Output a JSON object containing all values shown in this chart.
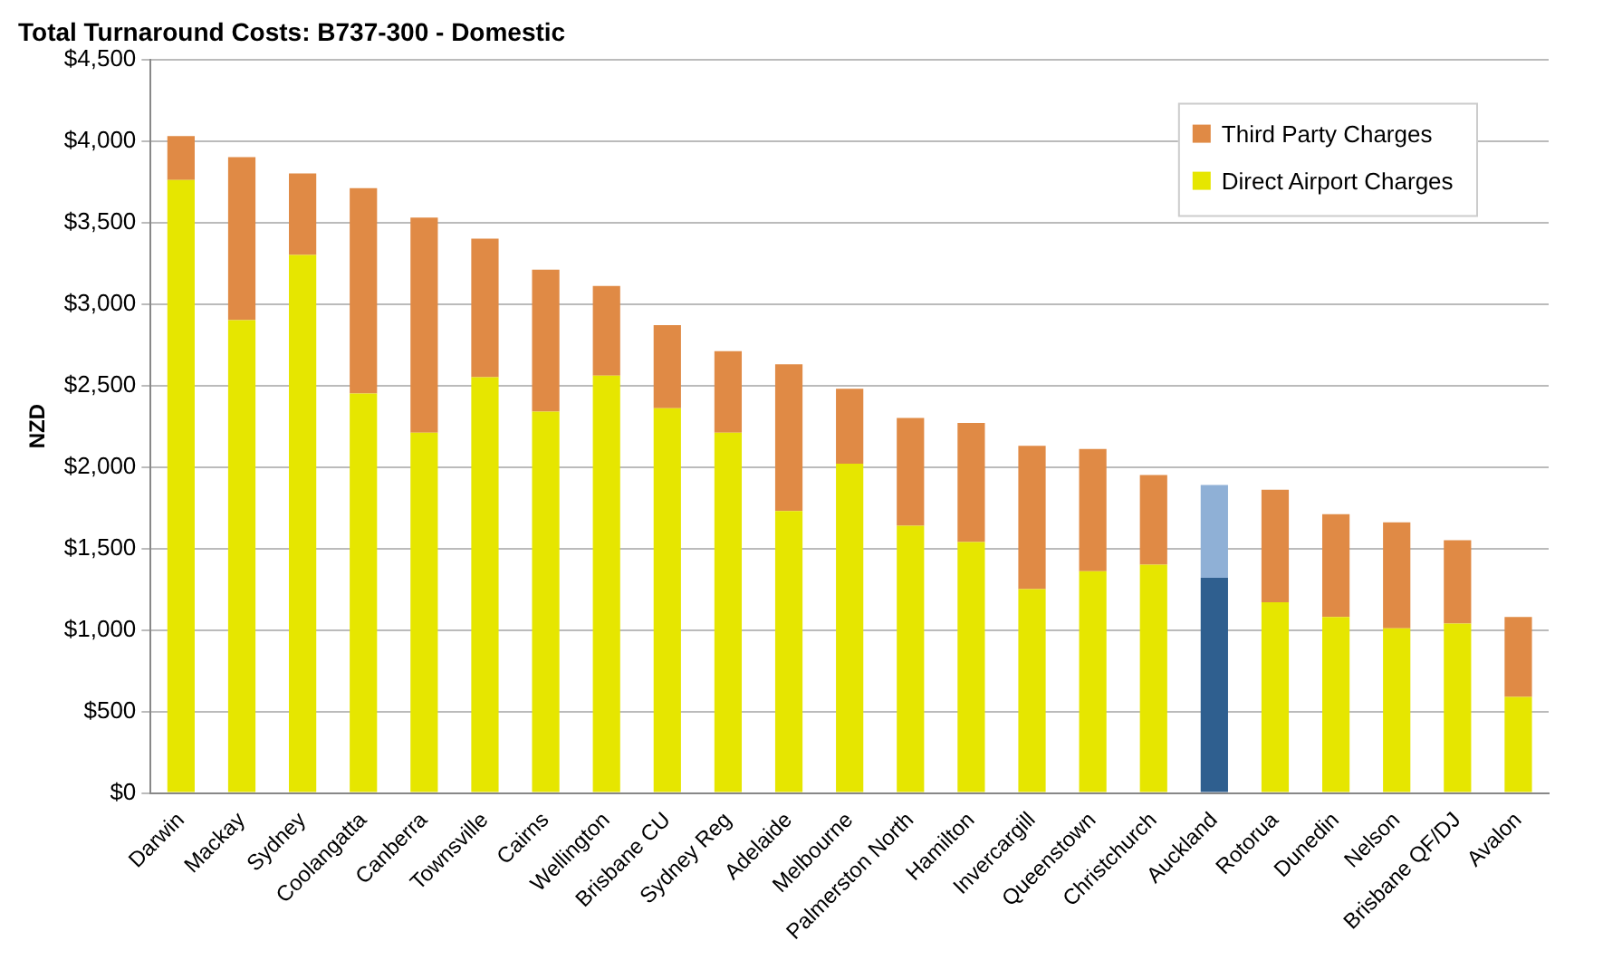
{
  "chart_data": {
    "type": "bar",
    "title": "Total Turnaround Costs: B737-300 - Domestic",
    "ylabel": "NZD",
    "stacked": true,
    "grid": "y",
    "legend": "top right",
    "categories": [
      "Darwin",
      "Mackay",
      "Sydney",
      "Coolangatta",
      "Canberra",
      "Townsville",
      "Cairns",
      "Wellington",
      "Brisbane CU",
      "Sydney Reg",
      "Adelaide",
      "Melbourne",
      "Palmerston North",
      "Hamilton",
      "Invercargill",
      "Queenstown",
      "Christchurch",
      "Auckland",
      "Rotorua",
      "Dunedin",
      "Nelson",
      "Brisbane QF/DJ",
      "Avalon"
    ],
    "series": [
      {
        "name": "Direct Airport Charges",
        "color": "#e6e600",
        "colors": [
          "#e6e600",
          "#e6e600",
          "#e6e600",
          "#e6e600",
          "#e6e600",
          "#e6e600",
          "#e6e600",
          "#e6e600",
          "#e6e600",
          "#e6e600",
          "#e6e600",
          "#e6e600",
          "#e6e600",
          "#e6e600",
          "#e6e600",
          "#e6e600",
          "#e6e600",
          "#2f5f8f",
          "#e6e600",
          "#e6e600",
          "#e6e600",
          "#e6e600",
          "#e6e600"
        ],
        "values": [
          3760,
          2900,
          3300,
          2450,
          2210,
          2550,
          2340,
          2560,
          2360,
          2210,
          1730,
          2020,
          1640,
          1540,
          1250,
          1360,
          1400,
          1320,
          1170,
          1080,
          1010,
          1040,
          590
        ]
      },
      {
        "name": "Third Party Charges",
        "color": "#e08a45",
        "colors": [
          "#e08a45",
          "#e08a45",
          "#e08a45",
          "#e08a45",
          "#e08a45",
          "#e08a45",
          "#e08a45",
          "#e08a45",
          "#e08a45",
          "#e08a45",
          "#e08a45",
          "#e08a45",
          "#e08a45",
          "#e08a45",
          "#e08a45",
          "#e08a45",
          "#e08a45",
          "#8fb0d6",
          "#e08a45",
          "#e08a45",
          "#e08a45",
          "#e08a45",
          "#e08a45"
        ],
        "values": [
          270,
          1000,
          500,
          1260,
          1320,
          850,
          870,
          550,
          510,
          500,
          900,
          460,
          660,
          730,
          880,
          750,
          550,
          570,
          690,
          630,
          650,
          510,
          490
        ]
      }
    ],
    "ylim": [
      0,
      4500
    ],
    "yticks": [
      {
        "value": 0,
        "label": "$0"
      },
      {
        "value": 500,
        "label": "$500"
      },
      {
        "value": 1000,
        "label": "$1,000"
      },
      {
        "value": 1500,
        "label": "$1,500"
      },
      {
        "value": 2000,
        "label": "$2,000"
      },
      {
        "value": 2500,
        "label": "$2,500"
      },
      {
        "value": 3000,
        "label": "$3,000"
      },
      {
        "value": 3500,
        "label": "$3,500"
      },
      {
        "value": 4000,
        "label": "$4,000"
      },
      {
        "value": 4500,
        "label": "$4,500"
      }
    ]
  }
}
